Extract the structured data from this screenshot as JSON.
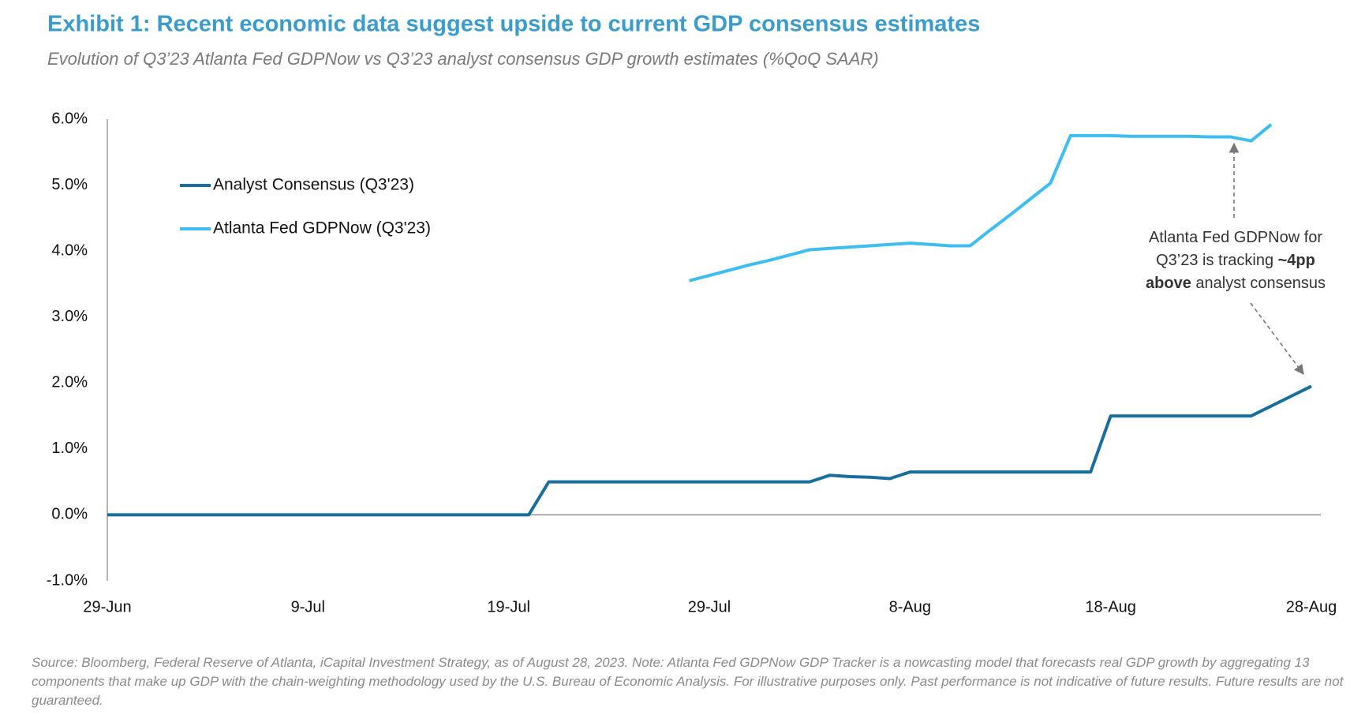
{
  "chart_data": {
    "type": "line",
    "title": "Exhibit 1: Recent economic data suggest upside to current GDP consensus estimates",
    "subtitle": "Evolution of Q3’23 Atlanta Fed GDPNow vs Q3’23 analyst consensus GDP growth estimates (%QoQ SAAR)",
    "categories": [
      "29-Jun",
      null,
      null,
      null,
      null,
      null,
      null,
      null,
      null,
      null,
      "9-Jul",
      null,
      null,
      null,
      null,
      null,
      null,
      null,
      null,
      null,
      "19-Jul",
      null,
      null,
      null,
      null,
      null,
      null,
      null,
      null,
      null,
      "29-Jul",
      null,
      null,
      null,
      null,
      null,
      null,
      null,
      null,
      null,
      "8-Aug",
      null,
      null,
      null,
      null,
      null,
      null,
      null,
      null,
      null,
      "18-Aug",
      null,
      null,
      null,
      null,
      null,
      null,
      null,
      null,
      null,
      "28-Aug"
    ],
    "series": [
      {
        "name": "Analyst Consensus (Q3'23)",
        "color": "#1a6e9c",
        "values": [
          0,
          0,
          0,
          0,
          0,
          0,
          0,
          0,
          0,
          0,
          0,
          0,
          0,
          0,
          0,
          0,
          0,
          0,
          0,
          0,
          0,
          0,
          0.5,
          0.5,
          0.5,
          0.5,
          0.5,
          0.5,
          0.5,
          0.5,
          0.5,
          0.5,
          0.5,
          0.5,
          0.5,
          0.5,
          0.6,
          0.58,
          0.57,
          0.55,
          0.65,
          0.65,
          0.65,
          0.65,
          0.65,
          0.65,
          0.65,
          0.65,
          0.65,
          0.65,
          1.5,
          1.5,
          1.5,
          1.5,
          1.5,
          1.5,
          1.5,
          1.5,
          1.65,
          1.8,
          1.95
        ]
      },
      {
        "name": "Atlanta Fed GDPNow (Q3'23)",
        "color": "#3ebdf2",
        "values": [
          null,
          null,
          null,
          null,
          null,
          null,
          null,
          null,
          null,
          null,
          null,
          null,
          null,
          null,
          null,
          null,
          null,
          null,
          null,
          null,
          null,
          null,
          null,
          null,
          null,
          null,
          null,
          null,
          null,
          3.55,
          3.63,
          3.71,
          3.79,
          3.86,
          3.94,
          4.02,
          4.04,
          4.06,
          4.08,
          4.1,
          4.12,
          4.1,
          4.08,
          4.08,
          4.32,
          4.55,
          4.79,
          5.03,
          5.75,
          5.75,
          5.75,
          5.74,
          5.74,
          5.74,
          5.74,
          5.73,
          5.73,
          5.67,
          5.92,
          null,
          null
        ]
      }
    ],
    "ylim": [
      -1,
      6
    ],
    "yticks": [
      {
        "value": -1,
        "label": "-1.0%"
      },
      {
        "value": 0,
        "label": "0.0%"
      },
      {
        "value": 1,
        "label": "1.0%"
      },
      {
        "value": 2,
        "label": "2.0%"
      },
      {
        "value": 3,
        "label": "3.0%"
      },
      {
        "value": 4,
        "label": "4.0%"
      },
      {
        "value": 5,
        "label": "5.0%"
      },
      {
        "value": 6,
        "label": "6.0%"
      }
    ],
    "grid": false,
    "annotation": {
      "lines": [
        [
          {
            "text": "Atlanta Fed GDPNow for"
          }
        ],
        [
          {
            "text": "Q3’23 is tracking "
          },
          {
            "text": "~4pp",
            "bold": true
          }
        ],
        [
          {
            "text": "above",
            "bold": true
          },
          {
            "text": " analyst consensus"
          }
        ]
      ]
    },
    "source": "Source: Bloomberg, Federal Reserve of Atlanta, iCapital Investment Strategy, as of August 28, 2023. Note: Atlanta Fed GDPNow GDP Tracker is a nowcasting model that forecasts real GDP growth by aggregating 13 components that make up GDP with the chain-weighting methodology used by the U.S. Bureau of Economic Analysis. For illustrative purposes only. Past performance is not indicative of future results. Future results are not guaranteed."
  }
}
